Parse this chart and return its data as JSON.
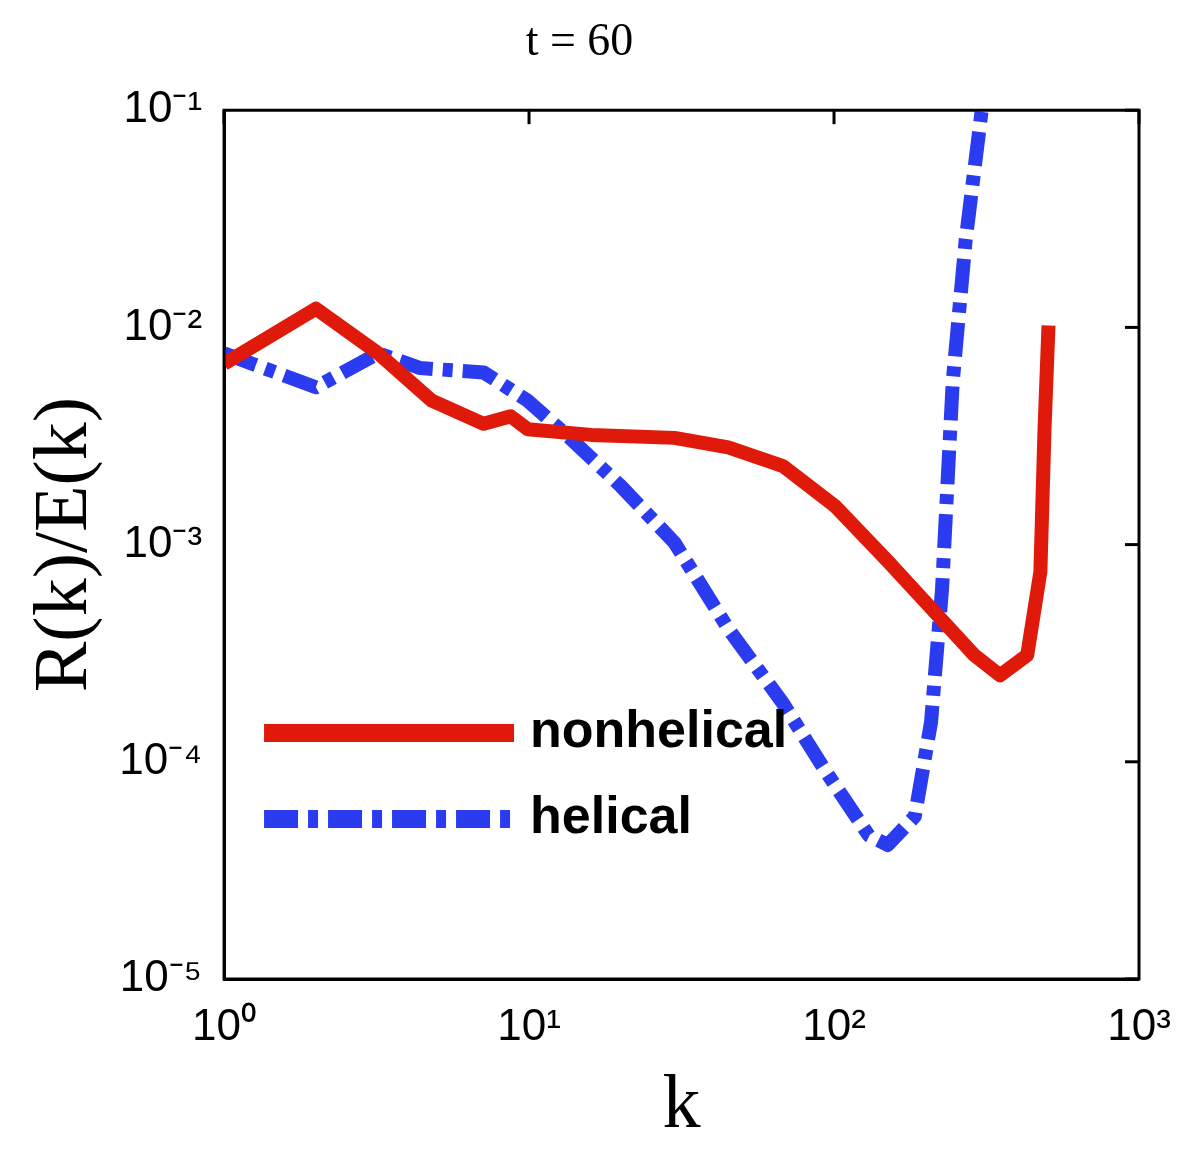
{
  "chart_data": {
    "type": "line",
    "title": "t = 60",
    "xlabel": "k",
    "ylabel": "R(k)/E(k)",
    "log": "xy",
    "grid": false,
    "legend": "bottom",
    "marker": "none",
    "xlim": [
      1,
      1000
    ],
    "xticks": [
      {
        "value": 1,
        "label": "10⁰"
      },
      {
        "value": 10,
        "label": "10¹"
      },
      {
        "value": 100,
        "label": "10²"
      },
      {
        "value": 1000,
        "label": "10³"
      }
    ],
    "ylim": [
      1e-05,
      0.1
    ],
    "yticks": [
      {
        "value": 1e-05,
        "label": "10⁻⁵"
      },
      {
        "value": 0.0001,
        "label": "10⁻⁴"
      },
      {
        "value": 0.001,
        "label": "10⁻³"
      },
      {
        "value": 0.01,
        "label": "10⁻²"
      },
      {
        "value": 0.1,
        "label": "10⁻¹"
      }
    ],
    "series": [
      {
        "name": "nonhelical",
        "color": "#e01a0a",
        "line_style": "solid",
        "x": [
          1,
          2,
          3.2,
          4.8,
          7.1,
          8.7,
          9.9,
          16,
          30,
          45,
          68,
          101,
          150,
          208,
          288,
          350,
          430,
          475,
          490,
          505
        ],
        "values": [
          0.0068,
          0.0122,
          0.0076,
          0.0046,
          0.0036,
          0.0039,
          0.0034,
          0.0032,
          0.0031,
          0.0028,
          0.0023,
          0.0015,
          0.00084,
          0.00051,
          0.00031,
          0.00025,
          0.00031,
          0.00075,
          0.0034,
          0.0102
        ]
      },
      {
        "name": "helical",
        "color": "#2b3cf0",
        "line_style": "dashed",
        "x": [
          1,
          2,
          3.2,
          4.4,
          7.1,
          9.9,
          13.6,
          20,
          30,
          45,
          68,
          93,
          130,
          150,
          184,
          208,
          226,
          245,
          270,
          305
        ],
        "values": [
          0.0076,
          0.0053,
          0.0076,
          0.0065,
          0.0062,
          0.0046,
          0.0031,
          0.00186,
          0.00102,
          0.00041,
          0.000186,
          9.23e-05,
          4.58e-05,
          4.14e-05,
          5.6e-05,
          0.000152,
          0.00062,
          0.0056,
          0.025,
          0.1
        ]
      }
    ]
  }
}
